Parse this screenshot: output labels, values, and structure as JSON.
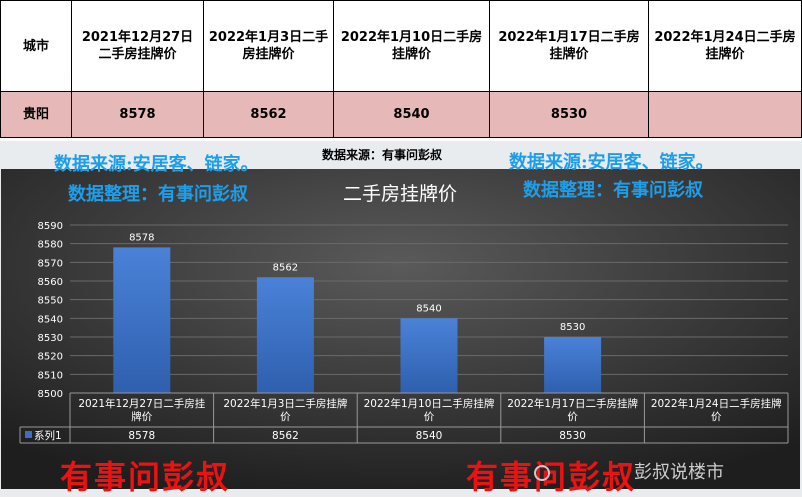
{
  "table": {
    "headers": [
      "城市",
      "2021年12月27日二手房挂牌价",
      "2022年1月3日二手房挂牌价",
      "2022年1月10日二手房挂牌价",
      "2022年1月17日二手房挂牌价",
      "2022年1月24日二手房挂牌价"
    ],
    "row": [
      "贵阳",
      "8578",
      "8562",
      "8540",
      "8530",
      ""
    ]
  },
  "source_note": "数据来源：有事问彭叔",
  "watermarks": {
    "source_left": "数据来源:安居客、链家。",
    "arranger_left": "数据整理：有事问彭叔",
    "source_right": "数据来源:安居客、链家。",
    "arranger_right": "数据整理：有事问彭叔",
    "red_left": "有事问彭叔",
    "red_right": "有事问彭叔",
    "brand": "彭叔说楼市"
  },
  "colors": {
    "bar": "#3a6fc4",
    "header_row": "#e6b9b8",
    "watermark_blue": "#1f9ee8",
    "watermark_red": "#ee1111"
  },
  "chart_data": {
    "type": "bar",
    "title": "二手房挂牌价",
    "categories": [
      "2021年12月27日二手房挂牌价",
      "2022年1月3日二手房挂牌价",
      "2022年1月10日二手房挂牌价",
      "2022年1月17日二手房挂牌价",
      "2022年1月24日二手房挂牌价"
    ],
    "category_lines": [
      [
        "2021年12月27日二手房挂",
        "牌价"
      ],
      [
        "2022年1月3日二手房挂牌",
        "价"
      ],
      [
        "2022年1月10日二手房挂牌",
        "价"
      ],
      [
        "2022年1月17日二手房挂牌",
        "价"
      ],
      [
        "2022年1月24日二手房挂牌",
        "价"
      ]
    ],
    "series": [
      {
        "name": "系列1",
        "values": [
          8578,
          8562,
          8540,
          8530,
          null
        ]
      }
    ],
    "data_table_values": [
      "8578",
      "8562",
      "8540",
      "8530",
      ""
    ],
    "data_labels": [
      "8578",
      "8562",
      "8540",
      "8530"
    ],
    "ylim": [
      8500,
      8590
    ],
    "yticks": [
      "8500",
      "8510",
      "8520",
      "8530",
      "8540",
      "8550",
      "8560",
      "8570",
      "8580",
      "8590"
    ],
    "grid": true,
    "legend": "data-table"
  }
}
